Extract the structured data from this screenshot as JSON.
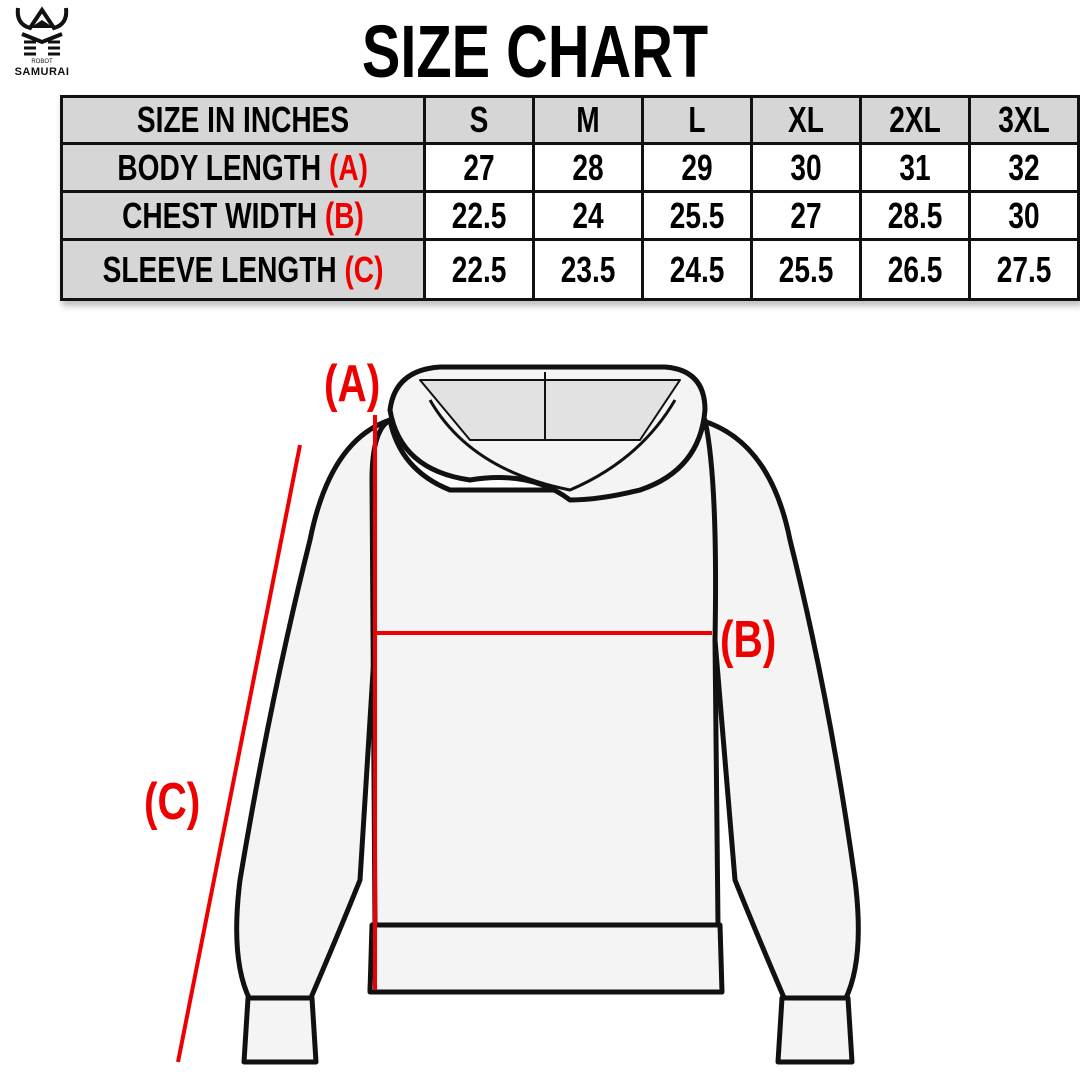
{
  "brand": {
    "logo_top": "ROBOT",
    "logo_name": "SAMURAI"
  },
  "title": "SIZE CHART",
  "table": {
    "header_label": "SIZE IN INCHES",
    "sizes": [
      "S",
      "M",
      "L",
      "XL",
      "2XL",
      "3XL"
    ],
    "rows": [
      {
        "label": "BODY LENGTH",
        "code": "(A)",
        "values": [
          "27",
          "28",
          "29",
          "30",
          "31",
          "32"
        ]
      },
      {
        "label": "CHEST WIDTH",
        "code": "(B)",
        "values": [
          "22.5",
          "24",
          "25.5",
          "27",
          "28.5",
          "30"
        ]
      },
      {
        "label": "SLEEVE LENGTH",
        "code": "(C)",
        "values": [
          "22.5",
          "23.5",
          "24.5",
          "25.5",
          "26.5",
          "27.5"
        ]
      }
    ]
  },
  "diagram": {
    "label_a": "(A)",
    "label_b": "(B)",
    "label_c": "(C)"
  },
  "colors": {
    "accent": "#ee0000",
    "header_bg": "#d6d6d6"
  }
}
